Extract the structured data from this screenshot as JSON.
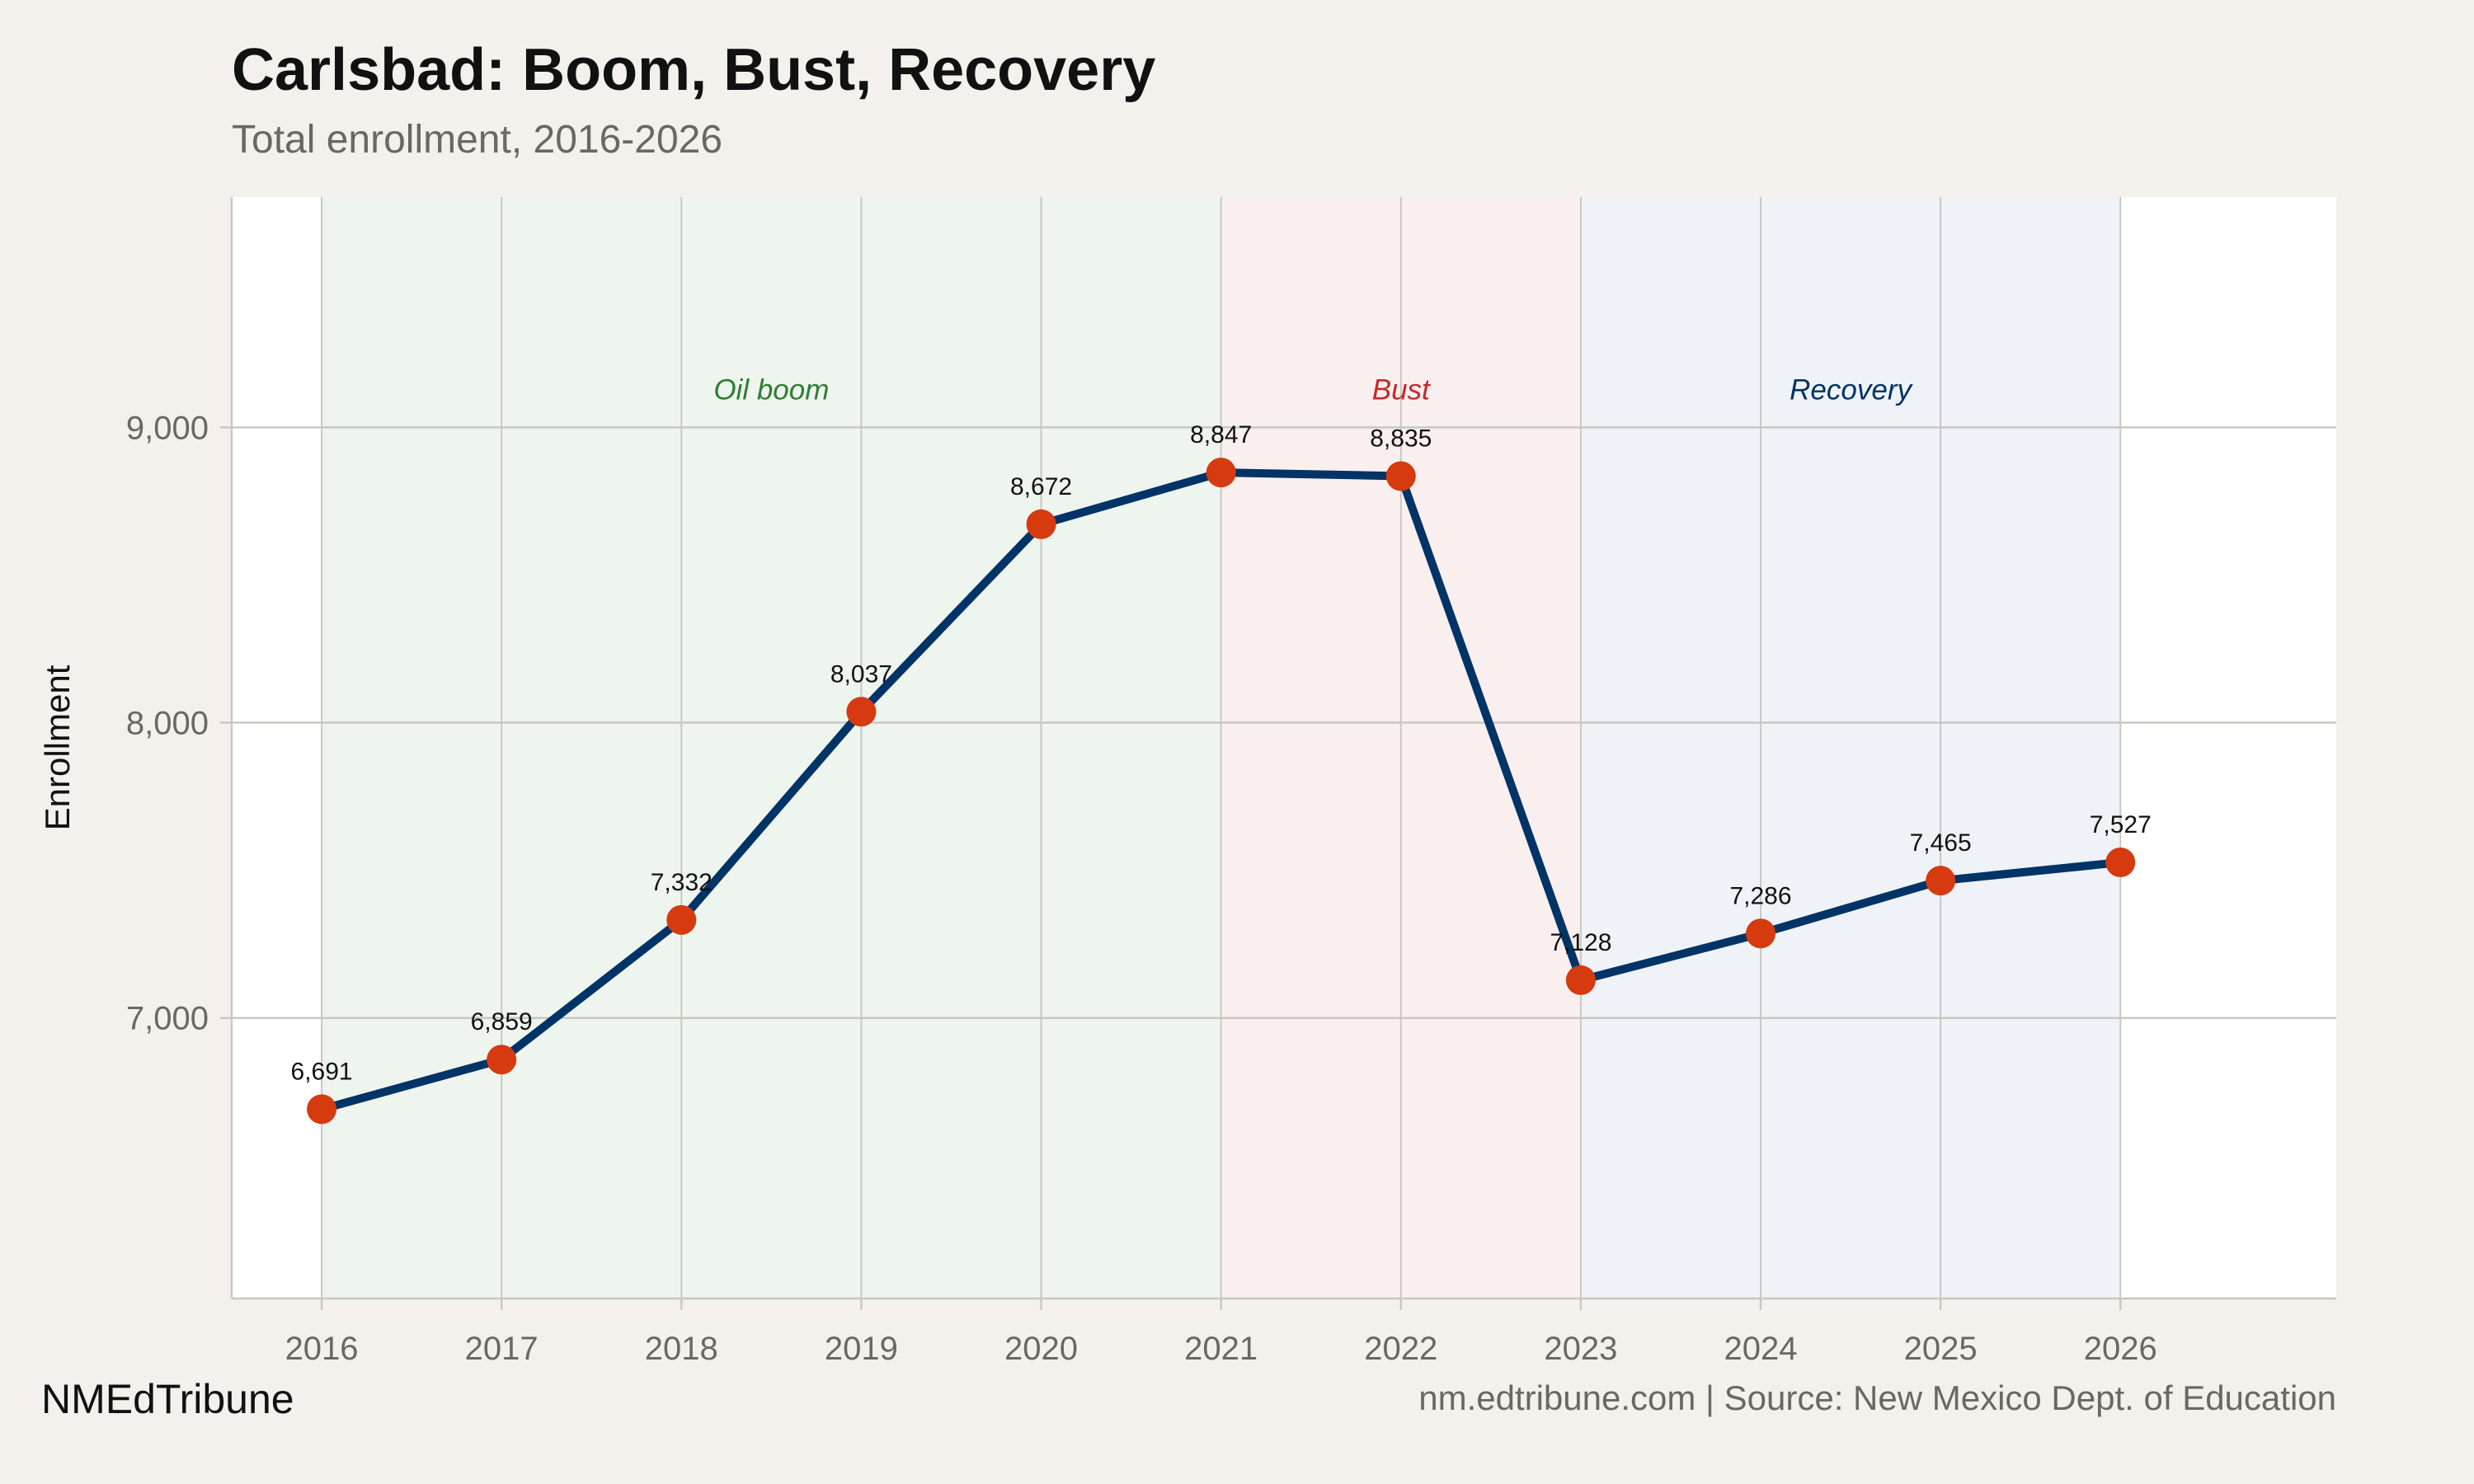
{
  "chart_data": {
    "type": "line",
    "title": "Carlsbad: Boom, Bust, Recovery",
    "subtitle": "Total enrollment, 2016-2026",
    "xlabel": "",
    "ylabel": "Enrollment",
    "x": [
      2016,
      2017,
      2018,
      2019,
      2020,
      2021,
      2022,
      2023,
      2024,
      2025,
      2026
    ],
    "values": [
      6691,
      6859,
      7332,
      8037,
      8672,
      8847,
      8835,
      7128,
      7286,
      7465,
      7527
    ],
    "data_labels": [
      "6,691",
      "6,859",
      "7,332",
      "8,037",
      "8,672",
      "8,847",
      "8,835",
      "7,128",
      "7,286",
      "7,465",
      "7,527"
    ],
    "xticks": [
      "2016",
      "2017",
      "2018",
      "2019",
      "2020",
      "2021",
      "2022",
      "2023",
      "2024",
      "2025",
      "2026"
    ],
    "yticks": [
      7000,
      8000,
      9000
    ],
    "ytick_labels": [
      "7,000",
      "8,000",
      "9,000"
    ],
    "xlim": [
      2015.5,
      2027.2
    ],
    "ylim": [
      6050,
      9780
    ],
    "grid": true,
    "regions": [
      {
        "label": "Oil boom",
        "start": 2016,
        "end": 2021,
        "fill": "#eef5ef",
        "text_color": "#2e7d32",
        "label_x": 2018.5
      },
      {
        "label": "Bust",
        "start": 2021,
        "end": 2023,
        "fill": "#f9efef",
        "text_color": "#c62828",
        "label_x": 2022
      },
      {
        "label": "Recovery",
        "start": 2023,
        "end": 2026,
        "fill": "#eff3f7",
        "text_color": "#003366",
        "label_x": 2024.5
      }
    ],
    "region_label_y": 9095,
    "colors": {
      "line": "#003366",
      "points": "#d63a0f",
      "grid": "#c9c8c0",
      "plot_bg": "#ffffff",
      "page_bg": "#f4f1ec"
    }
  },
  "footer": {
    "brand": "NMEdTribune",
    "source": "nm.edtribune.com | Source: New Mexico Dept. of Education"
  }
}
